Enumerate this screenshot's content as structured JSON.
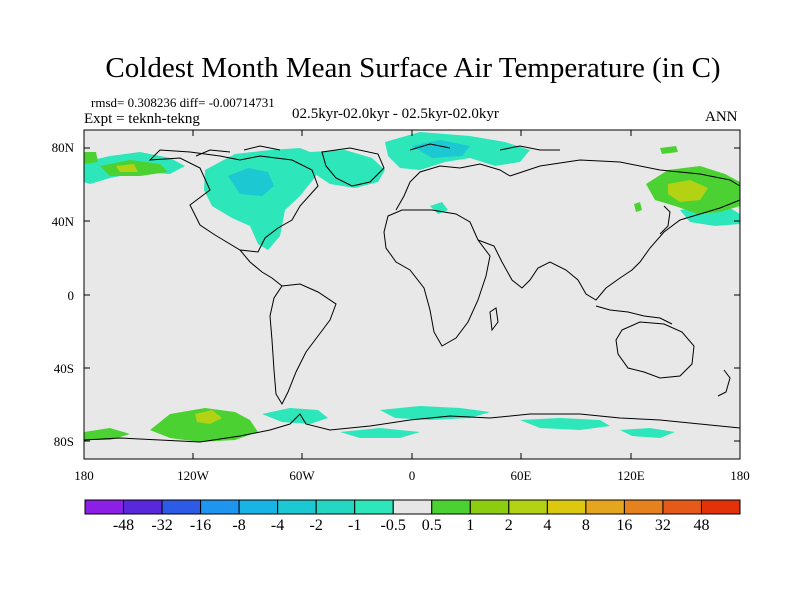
{
  "title": "Coldest Month Mean Surface Air Temperature (in C)",
  "stats": {
    "rmsd_line": "rmsd= 0.308236 diff= -0.00714731"
  },
  "experiment": "Expt = teknh-tekng",
  "period": "02.5kyr-02.0kyr - 02.5kyr-02.0kyr",
  "season": "ANN",
  "map": {
    "lat_labels": [
      "80N",
      "40N",
      "0",
      "40S",
      "80S"
    ],
    "lon_labels": [
      "180",
      "120W",
      "60W",
      "0",
      "60E",
      "120E",
      "180"
    ],
    "land_color": "#e8e8e8",
    "coast_color": "#000000"
  },
  "colorbar": {
    "colors": [
      "#8c1fe6",
      "#5a28dc",
      "#2d5ae6",
      "#1e96f0",
      "#19b4e6",
      "#1cc8d2",
      "#23d7c3",
      "#2de6b9",
      "#e6e6e6",
      "#4bd232",
      "#8ccd0f",
      "#b4d214",
      "#dcc80f",
      "#e6a51e",
      "#e6821e",
      "#e65a19",
      "#e1320a"
    ],
    "labels": [
      "-48",
      "-32",
      "-16",
      "-8",
      "-4",
      "-2",
      "-1",
      "-0.5",
      "0.5",
      "1",
      "2",
      "4",
      "8",
      "16",
      "32",
      "48"
    ]
  },
  "legend_colors": {
    "neg_small": "#2de6b9",
    "neg_mid": "#1cc8d2",
    "pos_small": "#4bd232",
    "pos_mid": "#8ccd0f",
    "pos_warm": "#b4d214"
  }
}
